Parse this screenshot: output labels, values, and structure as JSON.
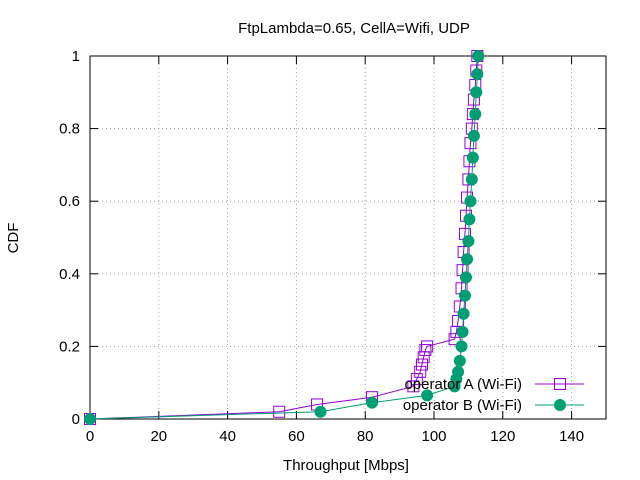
{
  "chart_data": {
    "type": "line",
    "title": "FtpLambda=0.65, CellA=Wifi, UDP",
    "xlabel": "Throughput [Mbps]",
    "ylabel": "CDF",
    "xlim": [
      0,
      150
    ],
    "ylim": [
      0,
      1
    ],
    "x_ticks": [
      "0",
      "20",
      "40",
      "60",
      "80",
      "100",
      "120",
      "140"
    ],
    "y_ticks": [
      "0",
      "0.2",
      "0.4",
      "0.6",
      "0.8",
      "1"
    ],
    "grid": true,
    "legend_position": "bottom-right",
    "series": [
      {
        "name": "operator A (Wi-Fi)",
        "color": "#9400d3",
        "marker": "open-square",
        "x": [
          0,
          55,
          66,
          82,
          94,
          95,
          96,
          96.5,
          97,
          97.5,
          98,
          106,
          106.5,
          107,
          107.5,
          108,
          108.3,
          108.6,
          109,
          109.3,
          109.6,
          110,
          110.3,
          110.6,
          111,
          111.3,
          111.6,
          112,
          112.3,
          112.6
        ],
        "y": [
          0,
          0.02,
          0.04,
          0.06,
          0.09,
          0.11,
          0.13,
          0.15,
          0.17,
          0.19,
          0.2,
          0.22,
          0.24,
          0.27,
          0.31,
          0.36,
          0.41,
          0.46,
          0.51,
          0.56,
          0.61,
          0.66,
          0.71,
          0.76,
          0.8,
          0.84,
          0.88,
          0.92,
          0.96,
          1.0
        ]
      },
      {
        "name": "operator B (Wi-Fi)",
        "color": "#009e73",
        "marker": "filled-circle",
        "x": [
          0,
          67,
          82,
          98,
          106,
          106.5,
          107,
          107.5,
          108,
          108.3,
          108.6,
          109,
          109.3,
          109.6,
          110,
          110.3,
          110.6,
          111,
          111.3,
          111.6,
          112,
          112.3,
          112.6,
          112.9
        ],
        "y": [
          0,
          0.02,
          0.045,
          0.065,
          0.09,
          0.11,
          0.13,
          0.16,
          0.2,
          0.24,
          0.29,
          0.34,
          0.39,
          0.44,
          0.49,
          0.55,
          0.6,
          0.66,
          0.72,
          0.78,
          0.84,
          0.9,
          0.95,
          1.0
        ]
      }
    ]
  }
}
